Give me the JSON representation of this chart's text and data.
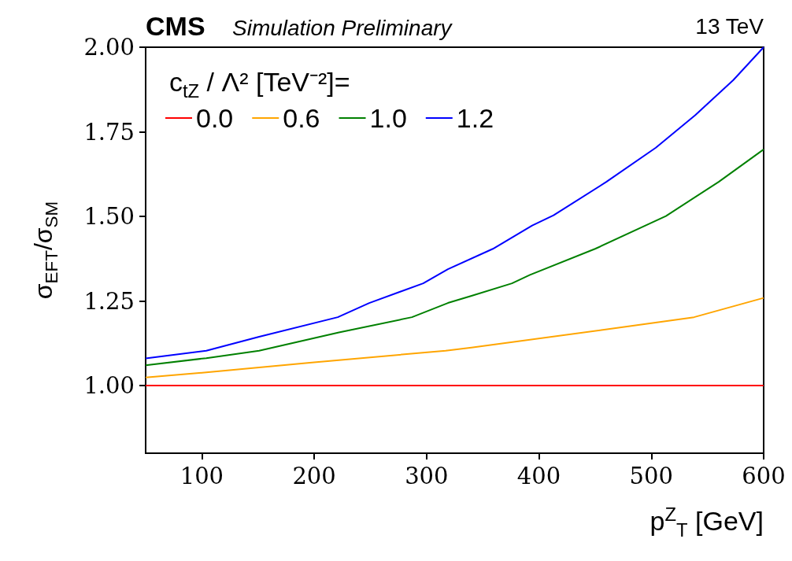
{
  "chart_data": {
    "type": "line",
    "title": "CMS",
    "subtitle": "Simulation Preliminary",
    "xlabel": "p$^{Z}$$_{T}$ [GeV]",
    "ylabel": "σ$_{EFT}$/σ$_{SM}$",
    "legend_title": "c$_{tZ}$ / Λ² [TeV⁻²]=",
    "annotations": [
      "13 TeV"
    ],
    "xlim": [
      50,
      600
    ],
    "xticks": [
      100,
      200,
      300,
      400,
      500,
      600
    ],
    "ylim": [
      0.8,
      2.0
    ],
    "yticks": [
      {
        "value": 1,
        "label": "1.00"
      },
      {
        "value": 1.25,
        "label": "1.25"
      },
      {
        "value": 1.5,
        "label": "1.50"
      },
      {
        "value": 1.75,
        "label": "1.75"
      },
      {
        "value": 2,
        "label": "2.00"
      }
    ],
    "grid": false,
    "legend": "top left",
    "marker": "none",
    "line_style": "solid",
    "series": [
      {
        "name": "0.0",
        "color": "#ff0000",
        "x": [
          50,
          600
        ],
        "values": [
          1.0,
          1.0
        ]
      },
      {
        "name": "0.6",
        "color": "#ffa500",
        "x": [
          50,
          104,
          198,
          317,
          340,
          467,
          538,
          600
        ],
        "values": [
          1.024,
          1.039,
          1.068,
          1.103,
          1.112,
          1.169,
          1.202,
          1.259
        ]
      },
      {
        "name": "1.0",
        "color": "#008000",
        "x": [
          50,
          104,
          151,
          222,
          287,
          319,
          340,
          376,
          392,
          450,
          513,
          560,
          600
        ],
        "values": [
          1.06,
          1.081,
          1.103,
          1.157,
          1.202,
          1.244,
          1.265,
          1.302,
          1.327,
          1.404,
          1.501,
          1.602,
          1.698
        ]
      },
      {
        "name": "1.2",
        "color": "#0000ff",
        "x": [
          50,
          104,
          151,
          221,
          249,
          297,
          319,
          359,
          394,
          413,
          460,
          504,
          539,
          573,
          600
        ],
        "values": [
          1.08,
          1.103,
          1.144,
          1.202,
          1.244,
          1.302,
          1.344,
          1.404,
          1.473,
          1.503,
          1.602,
          1.703,
          1.799,
          1.903,
          2.0
        ]
      }
    ]
  }
}
